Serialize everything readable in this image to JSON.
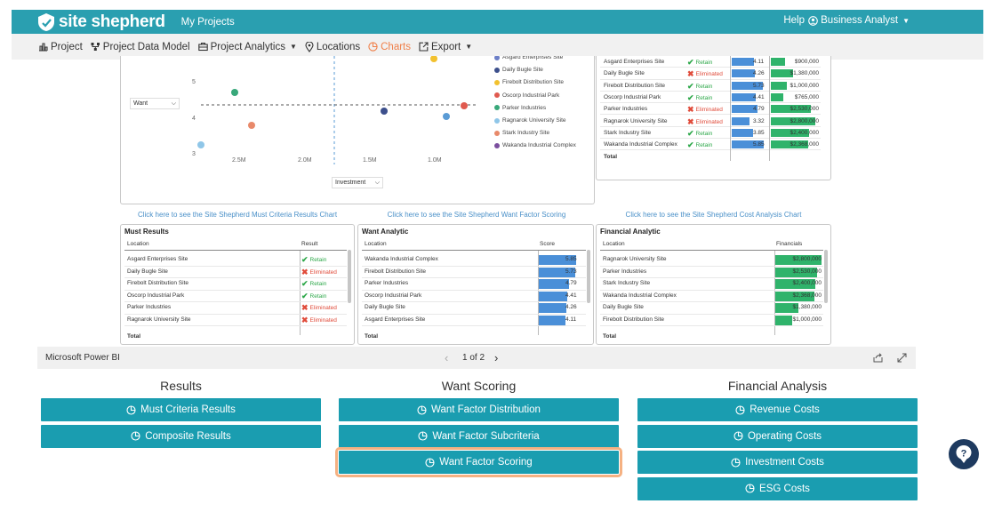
{
  "app": {
    "logo_text": "site shepherd",
    "my_projects": "My Projects",
    "help": "Help",
    "user": "Business Analyst"
  },
  "nav": [
    {
      "label": "Project",
      "icon": "bar-chart-icon"
    },
    {
      "label": "Project Data Model",
      "icon": "network-icon"
    },
    {
      "label": "Project Analytics",
      "icon": "briefcase-icon",
      "caret": true
    },
    {
      "label": "Locations",
      "icon": "map-pin-icon"
    },
    {
      "label": "Charts",
      "icon": "pie-chart-icon",
      "active": true
    },
    {
      "label": "Export",
      "icon": "export-icon",
      "caret": true
    }
  ],
  "scatter": {
    "y_selector": "Want",
    "x_selector": "Investment",
    "y_ticks": [
      "5",
      "4",
      "3"
    ],
    "x_ticks": [
      "2.5M",
      "2.0M",
      "1.5M",
      "1.0M"
    ],
    "legend": [
      {
        "name": "Asgard Enterprises Site",
        "color": "#6c7fc7"
      },
      {
        "name": "Daily Bugle Site",
        "color": "#3c4f8c"
      },
      {
        "name": "Firebolt Distribution Site",
        "color": "#f2c12e"
      },
      {
        "name": "Oscorp Industrial Park",
        "color": "#e05a4f"
      },
      {
        "name": "Parker Industries",
        "color": "#38a87a"
      },
      {
        "name": "Ragnarok University Site",
        "color": "#8fc6e8"
      },
      {
        "name": "Stark Industry Site",
        "color": "#e8896a"
      },
      {
        "name": "Wakanda Industrial Complex",
        "color": "#7b4f9e"
      }
    ]
  },
  "top_right_table": {
    "total_label": "Total",
    "rows": [
      {
        "location": "Asgard Enterprises Site",
        "result": "Retain",
        "score": "4.11",
        "fin": "$900,000"
      },
      {
        "location": "Daily Bugle Site",
        "result": "Eliminated",
        "score": "4.26",
        "fin": "$1,380,000"
      },
      {
        "location": "Firebolt Distribution Site",
        "result": "Retain",
        "score": "5.73",
        "fin": "$1,000,000"
      },
      {
        "location": "Oscorp Industrial Park",
        "result": "Retain",
        "score": "4.41",
        "fin": "$765,000"
      },
      {
        "location": "Parker Industries",
        "result": "Eliminated",
        "score": "4.79",
        "fin": "$2,530,000"
      },
      {
        "location": "Ragnarok University Site",
        "result": "Eliminated",
        "score": "3.32",
        "fin": "$2,800,000"
      },
      {
        "location": "Stark Industry Site",
        "result": "Retain",
        "score": "3.85",
        "fin": "$2,400,000"
      },
      {
        "location": "Wakanda Industrial Complex",
        "result": "Retain",
        "score": "5.85",
        "fin": "$2,368,000"
      }
    ]
  },
  "links": {
    "must": "Click here to see the Site Shepherd Must Criteria Results Chart",
    "want": "Click here to see the Site Shepherd Want Factor Scoring",
    "cost": "Click here to see the Site Shepherd Cost Analysis Chart"
  },
  "must_results": {
    "title": "Must Results",
    "col_location": "Location",
    "col_result": "Result",
    "total": "Total",
    "rows": [
      {
        "location": "Asgard Enterprises Site",
        "result": "Retain"
      },
      {
        "location": "Daily Bugle Site",
        "result": "Eliminated"
      },
      {
        "location": "Firebolt Distribution Site",
        "result": "Retain"
      },
      {
        "location": "Oscorp Industrial Park",
        "result": "Retain"
      },
      {
        "location": "Parker Industries",
        "result": "Eliminated"
      },
      {
        "location": "Ragnarok University Site",
        "result": "Eliminated"
      }
    ]
  },
  "want_analytic": {
    "title": "Want Analytic",
    "col_location": "Location",
    "col_score": "Score",
    "total": "Total",
    "rows": [
      {
        "location": "Wakanda Industrial Complex",
        "score": "5.85"
      },
      {
        "location": "Firebolt Distribution Site",
        "score": "5.73"
      },
      {
        "location": "Parker Industries",
        "score": "4.79"
      },
      {
        "location": "Oscorp Industrial Park",
        "score": "4.41"
      },
      {
        "location": "Daily Bugle Site",
        "score": "4.26"
      },
      {
        "location": "Asgard Enterprises Site",
        "score": "4.11"
      }
    ]
  },
  "financial_analytic": {
    "title": "Financial Analytic",
    "col_location": "Location",
    "col_fin": "Financials",
    "total": "Total",
    "rows": [
      {
        "location": "Ragnarok University Site",
        "fin": "$2,800,000"
      },
      {
        "location": "Parker Industries",
        "fin": "$2,530,000"
      },
      {
        "location": "Stark Industry Site",
        "fin": "$2,400,000"
      },
      {
        "location": "Wakanda Industrial Complex",
        "fin": "$2,368,000"
      },
      {
        "location": "Daily Bugle Site",
        "fin": "$1,380,000"
      },
      {
        "location": "Firebolt Distribution Site",
        "fin": "$1,000,000"
      }
    ]
  },
  "pbi_bar": {
    "brand": "Microsoft Power BI",
    "page": "1 of 2"
  },
  "sections": {
    "results": {
      "title": "Results",
      "buttons": [
        "Must Criteria Results",
        "Composite Results"
      ]
    },
    "want": {
      "title": "Want Scoring",
      "buttons": [
        "Want Factor Distribution",
        "Want Factor Subcriteria",
        "Want Factor Scoring"
      ],
      "selected": "Want Factor Scoring"
    },
    "financial": {
      "title": "Financial Analysis",
      "buttons": [
        "Revenue Costs",
        "Operating Costs",
        "Investment Costs",
        "ESG Costs"
      ]
    }
  }
}
